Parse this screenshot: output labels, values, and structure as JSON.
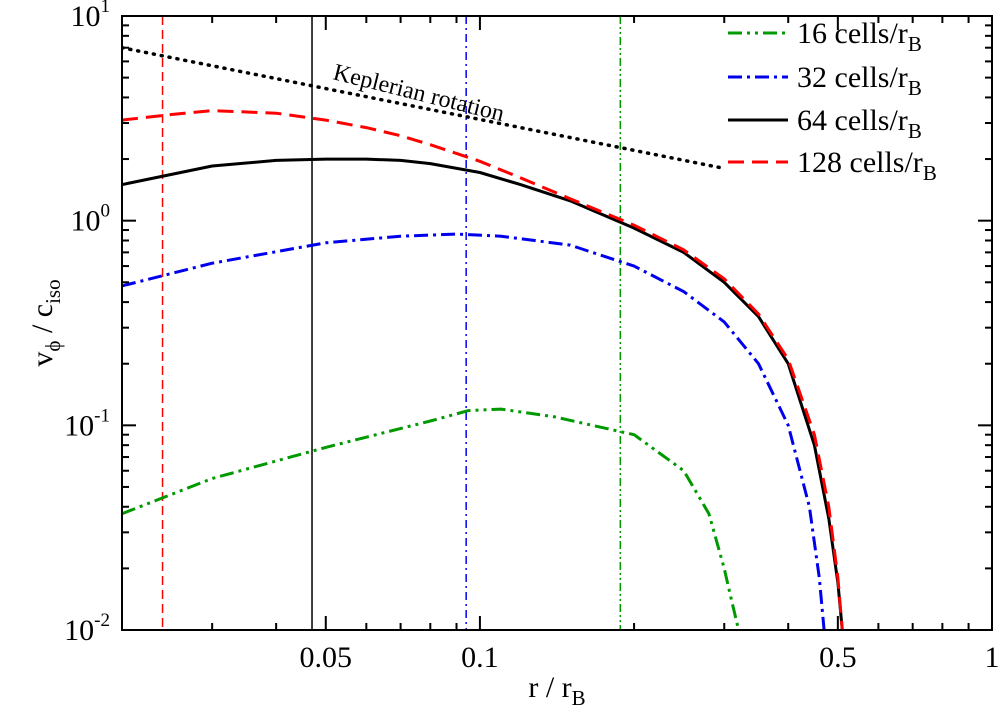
{
  "chart_data": {
    "type": "line",
    "title": "",
    "xlabel": "r / r_B",
    "ylabel": "v_phi / c_iso",
    "xscale": "log",
    "yscale": "log",
    "xlim": [
      0.02,
      1
    ],
    "ylim": [
      0.01,
      10
    ],
    "grid": false,
    "legend_position": "top-right",
    "x_ticks": [
      {
        "value": 0.05,
        "label": "0.05"
      },
      {
        "value": 0.1,
        "label": "0.1"
      },
      {
        "value": 0.5,
        "label": "0.5"
      },
      {
        "value": 1,
        "label": "1"
      }
    ],
    "y_ticks": [
      {
        "value": 10,
        "base": "10",
        "exp": "1"
      },
      {
        "value": 1,
        "base": "10",
        "exp": "0"
      },
      {
        "value": 0.1,
        "base": "10",
        "exp": "-1"
      },
      {
        "value": 0.01,
        "base": "10",
        "exp": "-2"
      }
    ],
    "series": [
      {
        "name": "16 cells/r_B",
        "label_main": "16 cells/r",
        "label_sub": "B",
        "color": "#009900",
        "dash": "14 5 3 5 3 5",
        "x": [
          0.02,
          0.03,
          0.05,
          0.08,
          0.095,
          0.11,
          0.14,
          0.2,
          0.25,
          0.28,
          0.3,
          0.31,
          0.32
        ],
        "y": [
          0.037,
          0.055,
          0.078,
          0.105,
          0.118,
          0.12,
          0.11,
          0.09,
          0.06,
          0.037,
          0.02,
          0.014,
          0.01
        ]
      },
      {
        "name": "32 cells/r_B",
        "label_main": "32 cells/r",
        "label_sub": "B",
        "color": "#0000ee",
        "dash": "14 5 3 5",
        "x": [
          0.02,
          0.03,
          0.05,
          0.07,
          0.09,
          0.11,
          0.15,
          0.2,
          0.25,
          0.3,
          0.35,
          0.4,
          0.44,
          0.46,
          0.47
        ],
        "y": [
          0.48,
          0.62,
          0.78,
          0.84,
          0.86,
          0.84,
          0.76,
          0.6,
          0.45,
          0.32,
          0.2,
          0.1,
          0.04,
          0.018,
          0.01
        ]
      },
      {
        "name": "64 cells/r_B",
        "label_main": "64 cells/r",
        "label_sub": "B",
        "color": "#000000",
        "dash": "",
        "x": [
          0.02,
          0.03,
          0.04,
          0.05,
          0.06,
          0.07,
          0.08,
          0.1,
          0.12,
          0.15,
          0.2,
          0.25,
          0.3,
          0.35,
          0.4,
          0.45,
          0.48,
          0.5,
          0.51
        ],
        "y": [
          1.5,
          1.85,
          1.97,
          2.0,
          2.0,
          1.97,
          1.9,
          1.72,
          1.5,
          1.25,
          0.92,
          0.7,
          0.5,
          0.34,
          0.2,
          0.08,
          0.035,
          0.017,
          0.01
        ]
      },
      {
        "name": "128 cells/r_B",
        "label_main": "128 cells/r",
        "label_sub": "B",
        "color": "#ff0000",
        "dash": "16 8",
        "x": [
          0.02,
          0.025,
          0.03,
          0.04,
          0.05,
          0.06,
          0.07,
          0.08,
          0.1,
          0.12,
          0.15,
          0.2,
          0.25,
          0.3,
          0.35,
          0.4,
          0.45,
          0.48,
          0.5,
          0.51
        ],
        "y": [
          3.1,
          3.3,
          3.45,
          3.35,
          3.1,
          2.85,
          2.6,
          2.35,
          1.95,
          1.62,
          1.28,
          0.95,
          0.72,
          0.52,
          0.35,
          0.21,
          0.09,
          0.04,
          0.018,
          0.01
        ]
      }
    ],
    "reference_line": {
      "label": "Keplerian rotation",
      "color": "#000000",
      "x": [
        0.02,
        0.3
      ],
      "y": [
        7.0,
        1.8
      ]
    },
    "vertical_lines": [
      {
        "x": 0.024,
        "color": "#ff0000",
        "style": "dashed"
      },
      {
        "x": 0.047,
        "color": "#000000",
        "style": "solid"
      },
      {
        "x": 0.094,
        "color": "#0000ee",
        "style": "dashdot"
      },
      {
        "x": 0.188,
        "color": "#009900",
        "style": "dashdotdot"
      }
    ]
  }
}
